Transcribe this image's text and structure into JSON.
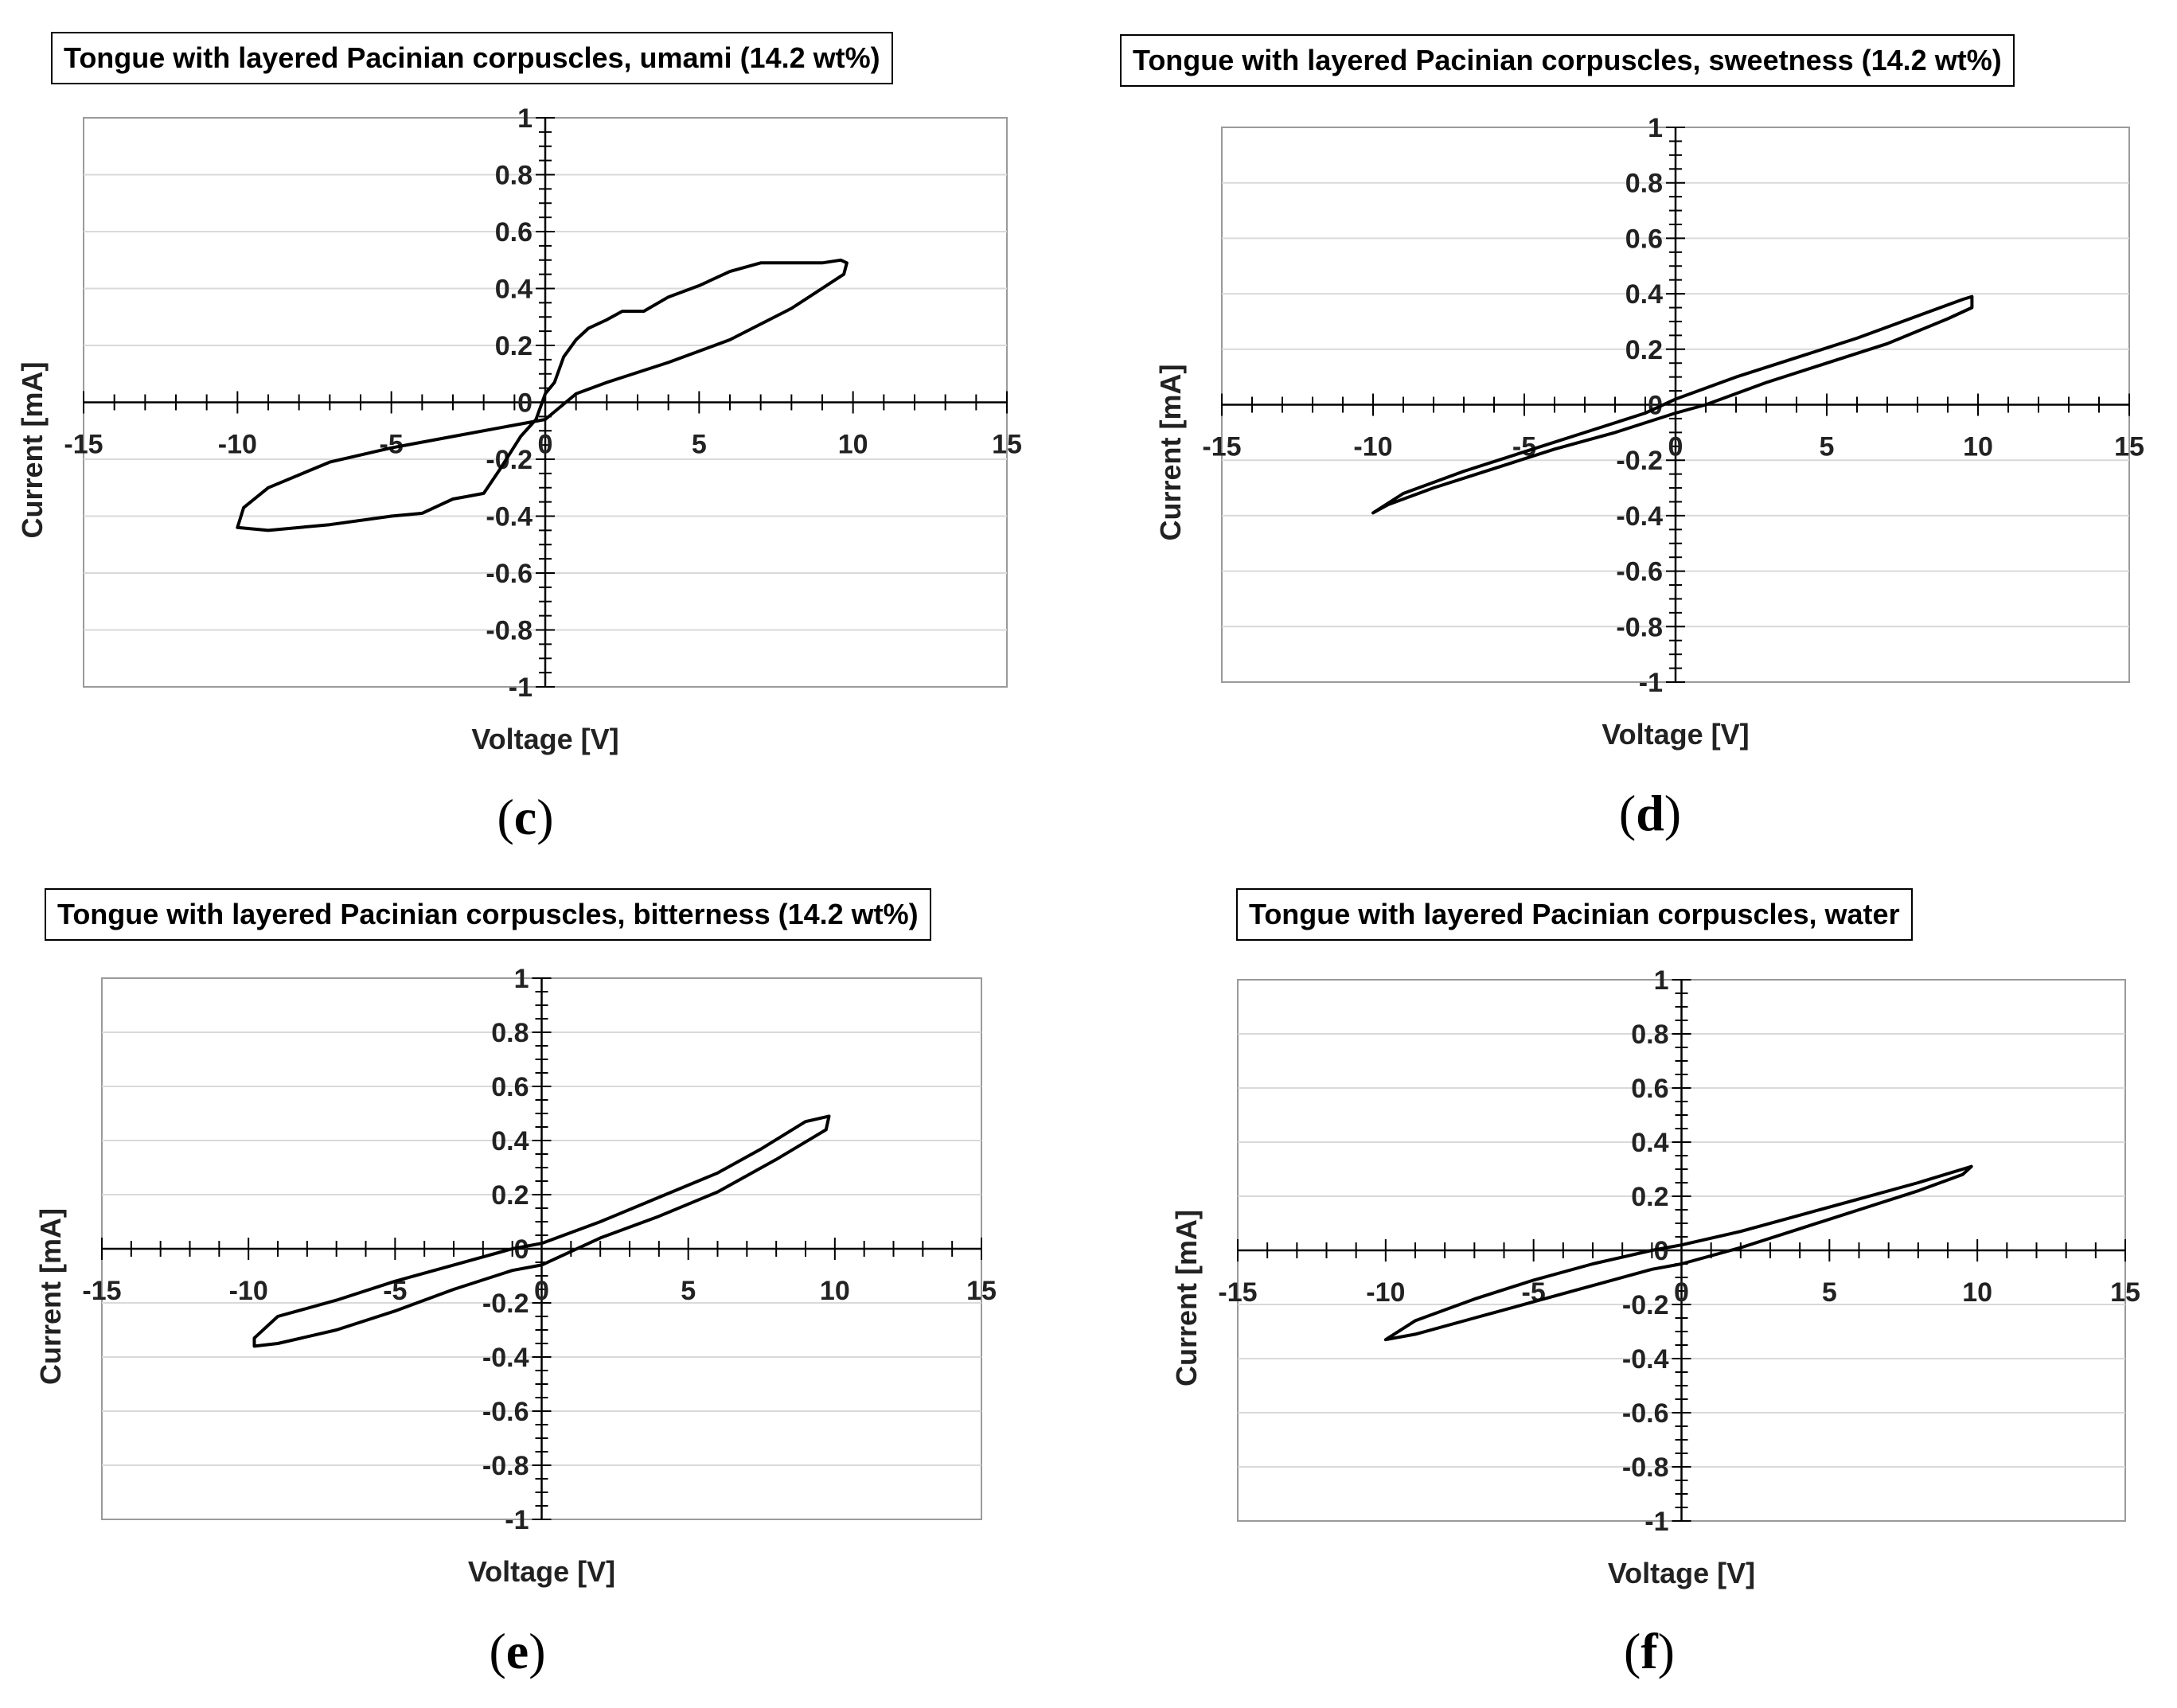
{
  "chart_data": [
    {
      "panel": "c",
      "type": "line",
      "title": "Tongue with layered Pacinian corpuscles, umami (14.2 wt%)",
      "xlabel": "Voltage  [V]",
      "ylabel": "Current  [mA]",
      "xlim": [
        -15,
        15
      ],
      "ylim": [
        -1,
        1
      ],
      "x_ticks": [
        "-15",
        "-10",
        "-5",
        "0",
        "5",
        "10",
        "15"
      ],
      "y_ticks": [
        "1",
        "0.8",
        "0.6",
        "0.4",
        "0.2",
        "0",
        "-0.2",
        "-0.4",
        "-0.6",
        "-0.8",
        "-1"
      ],
      "grid": "horizontal",
      "series": [
        {
          "name": "I-V loop",
          "points": [
            [
              -10,
              -0.44
            ],
            [
              -9,
              -0.45
            ],
            [
              -7,
              -0.43
            ],
            [
              -5,
              -0.4
            ],
            [
              -4,
              -0.39
            ],
            [
              -3,
              -0.34
            ],
            [
              -2.5,
              -0.33
            ],
            [
              -2,
              -0.32
            ],
            [
              -1.5,
              -0.24
            ],
            [
              -0.8,
              -0.12
            ],
            [
              -0.3,
              -0.06
            ],
            [
              0,
              0.03
            ],
            [
              0.3,
              0.07
            ],
            [
              0.6,
              0.16
            ],
            [
              1,
              0.22
            ],
            [
              1.4,
              0.26
            ],
            [
              2,
              0.29
            ],
            [
              2.5,
              0.32
            ],
            [
              3.2,
              0.32
            ],
            [
              4,
              0.37
            ],
            [
              5,
              0.41
            ],
            [
              6,
              0.46
            ],
            [
              7,
              0.49
            ],
            [
              8,
              0.49
            ],
            [
              9,
              0.49
            ],
            [
              9.6,
              0.5
            ],
            [
              9.8,
              0.49
            ],
            [
              9.7,
              0.45
            ],
            [
              8,
              0.33
            ],
            [
              6,
              0.22
            ],
            [
              4,
              0.14
            ],
            [
              2,
              0.07
            ],
            [
              1,
              0.03
            ],
            [
              0,
              -0.06
            ],
            [
              -1,
              -0.08
            ],
            [
              -3,
              -0.12
            ],
            [
              -5,
              -0.16
            ],
            [
              -7,
              -0.21
            ],
            [
              -9,
              -0.3
            ],
            [
              -9.8,
              -0.37
            ],
            [
              -10,
              -0.44
            ]
          ]
        }
      ]
    },
    {
      "panel": "d",
      "type": "line",
      "title": "Tongue with layered Pacinian corpuscles, sweetness (14.2 wt%)",
      "xlabel": "Voltage  [V]",
      "ylabel": "Current  [mA]",
      "xlim": [
        -15,
        15
      ],
      "ylim": [
        -1,
        1
      ],
      "x_ticks": [
        "-15",
        "-10",
        "-5",
        "0",
        "5",
        "10",
        "15"
      ],
      "y_ticks": [
        "1",
        "0.8",
        "0.6",
        "0.4",
        "0.2",
        "0",
        "-0.2",
        "-0.4",
        "-0.6",
        "-0.8",
        "-1"
      ],
      "grid": "horizontal",
      "series": [
        {
          "name": "I-V loop",
          "points": [
            [
              -10,
              -0.39
            ],
            [
              -9,
              -0.32
            ],
            [
              -7,
              -0.24
            ],
            [
              -5,
              -0.17
            ],
            [
              -3,
              -0.1
            ],
            [
              -1,
              -0.03
            ],
            [
              0,
              0.02
            ],
            [
              2,
              0.1
            ],
            [
              4,
              0.17
            ],
            [
              6,
              0.24
            ],
            [
              8,
              0.32
            ],
            [
              9.5,
              0.38
            ],
            [
              9.8,
              0.39
            ],
            [
              9.8,
              0.35
            ],
            [
              9,
              0.31
            ],
            [
              7,
              0.22
            ],
            [
              5,
              0.15
            ],
            [
              3,
              0.08
            ],
            [
              1,
              0.0
            ],
            [
              0,
              -0.03
            ],
            [
              -2,
              -0.1
            ],
            [
              -4,
              -0.16
            ],
            [
              -6,
              -0.23
            ],
            [
              -8,
              -0.3
            ],
            [
              -9.5,
              -0.36
            ],
            [
              -10,
              -0.39
            ]
          ]
        }
      ]
    },
    {
      "panel": "e",
      "type": "line",
      "title": "Tongue with layered Pacinian corpuscles, bitterness (14.2 wt%)",
      "xlabel": "Voltage  [V]",
      "ylabel": "Current  [mA]",
      "xlim": [
        -15,
        15
      ],
      "ylim": [
        -1,
        1
      ],
      "x_ticks": [
        "-15",
        "-10",
        "-5",
        "0",
        "5",
        "10",
        "15"
      ],
      "y_ticks": [
        "1",
        "0.8",
        "0.6",
        "0.4",
        "0.2",
        "0",
        "-0.2",
        "-0.4",
        "-0.6",
        "-0.8",
        "-1"
      ],
      "grid": "horizontal",
      "series": [
        {
          "name": "I-V loop",
          "points": [
            [
              -9.8,
              -0.33
            ],
            [
              -9,
              -0.25
            ],
            [
              -7,
              -0.19
            ],
            [
              -5,
              -0.12
            ],
            [
              -3,
              -0.06
            ],
            [
              -1,
              0.0
            ],
            [
              0,
              0.02
            ],
            [
              2,
              0.1
            ],
            [
              4,
              0.19
            ],
            [
              6,
              0.28
            ],
            [
              7.5,
              0.37
            ],
            [
              9,
              0.47
            ],
            [
              9.8,
              0.49
            ],
            [
              9.7,
              0.44
            ],
            [
              8,
              0.33
            ],
            [
              6,
              0.21
            ],
            [
              4,
              0.12
            ],
            [
              2,
              0.04
            ],
            [
              0,
              -0.06
            ],
            [
              -1,
              -0.08
            ],
            [
              -3,
              -0.15
            ],
            [
              -5,
              -0.23
            ],
            [
              -7,
              -0.3
            ],
            [
              -9,
              -0.35
            ],
            [
              -9.8,
              -0.36
            ],
            [
              -9.8,
              -0.33
            ]
          ]
        }
      ]
    },
    {
      "panel": "f",
      "type": "line",
      "title": "Tongue with layered Pacinian corpuscles, water",
      "xlabel": "Voltage  [V]",
      "ylabel": "Current  [mA]",
      "xlim": [
        -15,
        15
      ],
      "ylim": [
        -1,
        1
      ],
      "x_ticks": [
        "-15",
        "-10",
        "-5",
        "0",
        "5",
        "10",
        "15"
      ],
      "y_ticks": [
        "1",
        "0.8",
        "0.6",
        "0.4",
        "0.2",
        "0",
        "-0.2",
        "-0.4",
        "-0.6",
        "-0.8",
        "-1"
      ],
      "grid": "horizontal",
      "series": [
        {
          "name": "I-V loop",
          "points": [
            [
              -10,
              -0.33
            ],
            [
              -9,
              -0.26
            ],
            [
              -7,
              -0.18
            ],
            [
              -5,
              -0.11
            ],
            [
              -3,
              -0.05
            ],
            [
              -1,
              0.0
            ],
            [
              0,
              0.02
            ],
            [
              2,
              0.07
            ],
            [
              4,
              0.13
            ],
            [
              6,
              0.19
            ],
            [
              8,
              0.25
            ],
            [
              9.5,
              0.3
            ],
            [
              9.8,
              0.31
            ],
            [
              9.5,
              0.28
            ],
            [
              8,
              0.22
            ],
            [
              6,
              0.15
            ],
            [
              4,
              0.08
            ],
            [
              2,
              0.01
            ],
            [
              0,
              -0.05
            ],
            [
              -1,
              -0.07
            ],
            [
              -3,
              -0.13
            ],
            [
              -5,
              -0.19
            ],
            [
              -7,
              -0.25
            ],
            [
              -9,
              -0.31
            ],
            [
              -10,
              -0.33
            ]
          ]
        }
      ]
    }
  ]
}
